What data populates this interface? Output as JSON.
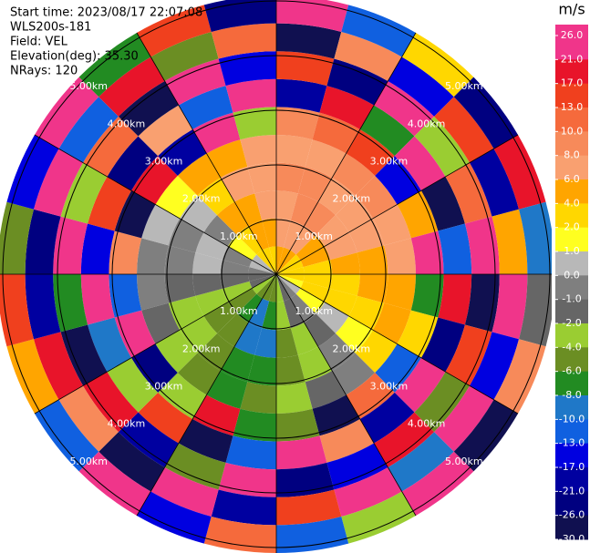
{
  "chart_data": {
    "type": "ppi",
    "title_lines": [
      "Start time: 2023/08/17 22:07:08",
      "WLS200s-181",
      "Field: VEL",
      "Elevation(deg): 35.30",
      "NRays: 120"
    ],
    "units": "m/s",
    "azimuths": [
      0,
      15,
      30,
      45,
      60,
      75,
      90,
      105,
      120,
      135,
      150,
      165,
      180,
      195,
      210,
      225,
      240,
      255,
      270,
      285,
      300,
      315,
      330,
      345
    ],
    "ranges": [
      0,
      0.51,
      1.02,
      1.53,
      2.04,
      2.55,
      3.06,
      3.57,
      4.08,
      4.59,
      5.1
    ],
    "values": [
      [
        4,
        6,
        6,
        8,
        6,
        8,
        -21,
        13,
        -30,
        21
      ],
      [
        4,
        6,
        8,
        8,
        6,
        10,
        17,
        -26,
        8,
        -13
      ],
      [
        4,
        6,
        8,
        6,
        8,
        13,
        -8,
        26,
        -17,
        2
      ],
      [
        2,
        4,
        6,
        6,
        8,
        -17,
        21,
        -4,
        13,
        -26
      ],
      [
        2,
        4,
        6,
        6,
        6,
        4,
        -30,
        10,
        -21,
        17
      ],
      [
        2,
        2,
        4,
        4,
        6,
        21,
        -13,
        26,
        4,
        -10
      ],
      [
        2,
        2,
        2,
        4,
        4,
        -8,
        17,
        -30,
        21,
        -2
      ],
      [
        1,
        2,
        2,
        2,
        4,
        2,
        -26,
        13,
        -17,
        8
      ],
      [
        0,
        1,
        0,
        1,
        2,
        -13,
        26,
        -6,
        21,
        -30
      ],
      [
        -1,
        -1,
        -2,
        -1,
        -1,
        10,
        -21,
        17,
        -10,
        26
      ],
      [
        -2,
        -2,
        -4,
        -4,
        -2,
        -30,
        8,
        -17,
        21,
        -4
      ],
      [
        -4,
        -4,
        -6,
        -6,
        -4,
        -6,
        21,
        -26,
        13,
        -13
      ],
      [
        -6,
        -8,
        -10,
        -8,
        -6,
        -8,
        -13,
        26,
        -21,
        10
      ],
      [
        -6,
        -10,
        -10,
        -8,
        -8,
        17,
        -30,
        -6,
        21,
        -17
      ],
      [
        -6,
        -8,
        -6,
        -6,
        -6,
        -4,
        13,
        -21,
        -30,
        26
      ],
      [
        -4,
        -6,
        -6,
        -4,
        -4,
        -26,
        -4,
        17,
        8,
        -13
      ],
      [
        -2,
        -4,
        -4,
        -4,
        -2,
        21,
        -10,
        -30,
        17,
        4
      ],
      [
        -2,
        -2,
        -2,
        -2,
        -1,
        -13,
        26,
        -8,
        -21,
        13
      ],
      [
        -1,
        -1,
        0,
        -1,
        -1,
        8,
        -17,
        21,
        -26,
        -6
      ],
      [
        0,
        -1,
        0,
        -1,
        0,
        -30,
        13,
        -4,
        26,
        -17
      ],
      [
        0,
        1,
        -1,
        0,
        1,
        17,
        -26,
        10,
        -13,
        21
      ],
      [
        2,
        2,
        4,
        2,
        4,
        -21,
        6,
        -30,
        17,
        -8
      ],
      [
        2,
        4,
        4,
        6,
        4,
        26,
        -13,
        21,
        -6,
        13
      ],
      [
        2,
        4,
        6,
        6,
        6,
        -4,
        21,
        -17,
        10,
        -26
      ]
    ],
    "rings": [
      {
        "value": 1,
        "label": "1.00km"
      },
      {
        "value": 2,
        "label": "2.00km"
      },
      {
        "value": 3,
        "label": "3.00km"
      },
      {
        "value": 4,
        "label": "4.00km"
      },
      {
        "value": 5,
        "label": "5.00km"
      }
    ],
    "cbar_ticks": [
      {
        "value": 26,
        "label": "26.0"
      },
      {
        "value": 21,
        "label": "21.0"
      },
      {
        "value": 17,
        "label": "17.0"
      },
      {
        "value": 13,
        "label": "13.0"
      },
      {
        "value": 10,
        "label": "10.0"
      },
      {
        "value": 8,
        "label": "8.0"
      },
      {
        "value": 6,
        "label": "6.0"
      },
      {
        "value": 4,
        "label": "4.0"
      },
      {
        "value": 2,
        "label": "2.0"
      },
      {
        "value": 1,
        "label": "1.0"
      },
      {
        "value": 0,
        "label": "0.0"
      },
      {
        "value": -1,
        "label": "-1.0"
      },
      {
        "value": -2,
        "label": "-2.0"
      },
      {
        "value": -4,
        "label": "-4.0"
      },
      {
        "value": -6,
        "label": "-6.0"
      },
      {
        "value": -8,
        "label": "-8.0"
      },
      {
        "value": -10,
        "label": "-10.0"
      },
      {
        "value": -13,
        "label": "-13.0"
      },
      {
        "value": -17,
        "label": "-17.0"
      },
      {
        "value": -21,
        "label": "-21.0"
      },
      {
        "value": -26,
        "label": "-26.0"
      },
      {
        "value": -30,
        "label": "-30.0"
      }
    ],
    "cbar_colors": [
      "#f0358a",
      "#e8142a",
      "#f0401e",
      "#f56a3c",
      "#f78a5a",
      "#f9a070",
      "#ffa500",
      "#ffd700",
      "#ffff20",
      "#b8b8b8",
      "#7f7f7f",
      "#666666",
      "#9acd32",
      "#6b8e23",
      "#228b22",
      "#1f78c8",
      "#1060e0",
      "#0000e0",
      "#0000a0",
      "#000080",
      "#101050"
    ]
  }
}
